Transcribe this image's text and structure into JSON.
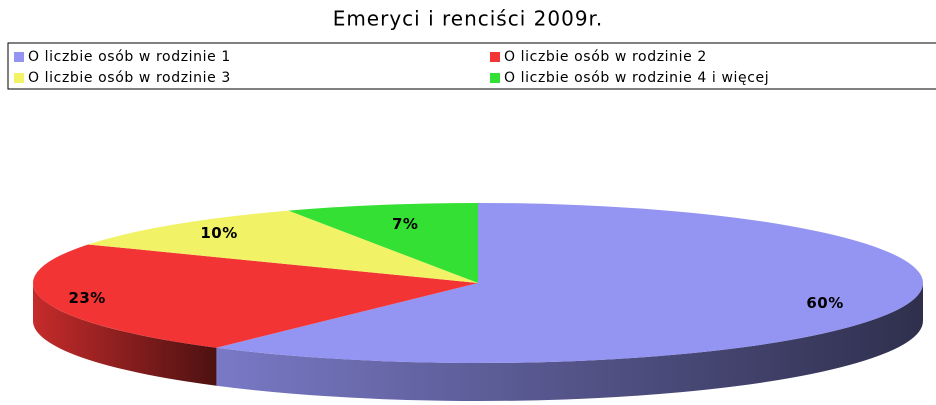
{
  "chart_data": {
    "type": "pie",
    "title": "Emeryci i renciści 2009r.",
    "categories": [
      "O liczbie osób w rodzinie 1",
      "O liczbie osób w rodzinie 2",
      "O liczbie osób w rodzinie 3",
      "O liczbie osób w rodzinie 4 i więcej"
    ],
    "values": [
      60,
      23,
      10,
      7
    ],
    "value_labels": [
      "60%",
      "23%",
      "10%",
      "7%"
    ],
    "colors": [
      "#9494f2",
      "#f23434",
      "#f2f266",
      "#34e034"
    ],
    "legend": "top"
  }
}
